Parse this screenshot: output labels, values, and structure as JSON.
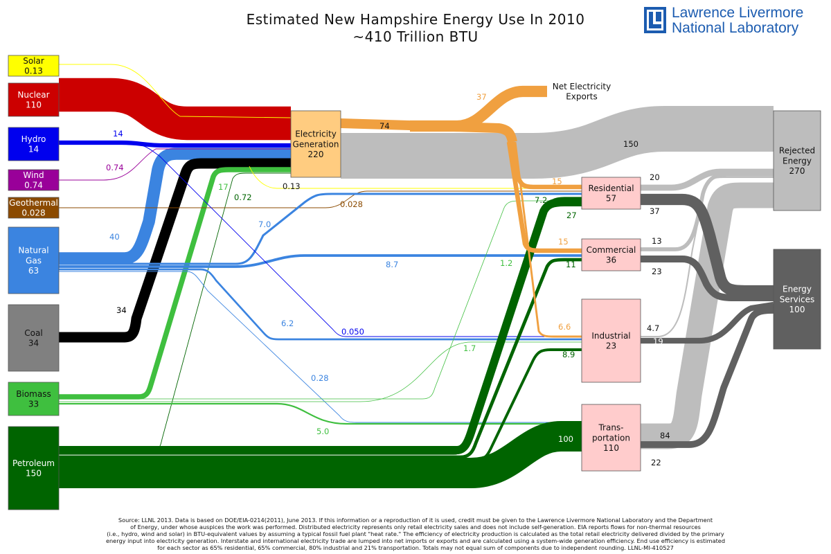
{
  "title": {
    "line1": "Estimated New Hampshire Energy Use In 2010",
    "line2": "~410 Trillion BTU"
  },
  "logo": {
    "line1": "Lawrence Livermore",
    "line2": "National Laboratory"
  },
  "colors": {
    "solar": "#ffff00",
    "nuclear": "#cc0000",
    "hydro": "#0000ee",
    "wind": "#990099",
    "geothermal": "#8b4a00",
    "natural_gas": "#3b84e0",
    "coal": "#000000",
    "biomass": "#3fbf3f",
    "petroleum": "#006400",
    "electricity": "#f0a040",
    "rejected": "#bdbdbd",
    "services": "#606060",
    "sector": "#ffcccc"
  },
  "sources": [
    {
      "id": "solar",
      "name": "Solar",
      "value": "0.13"
    },
    {
      "id": "nuclear",
      "name": "Nuclear",
      "value": "110"
    },
    {
      "id": "hydro",
      "name": "Hydro",
      "value": "14"
    },
    {
      "id": "wind",
      "name": "Wind",
      "value": "0.74"
    },
    {
      "id": "geothermal",
      "name": "Geothermal",
      "value": "0.028"
    },
    {
      "id": "natural_gas",
      "name": "Natural\nGas",
      "value": "63"
    },
    {
      "id": "coal",
      "name": "Coal",
      "value": "34"
    },
    {
      "id": "biomass",
      "name": "Biomass",
      "value": "33"
    },
    {
      "id": "petroleum",
      "name": "Petroleum",
      "value": "150"
    }
  ],
  "electricity": {
    "name": "Electricity\nGeneration",
    "value": "220"
  },
  "exports": {
    "name": "Net Electricity\nExports"
  },
  "sectors": [
    {
      "id": "residential",
      "name": "Residential",
      "value": "57"
    },
    {
      "id": "commercial",
      "name": "Commercial",
      "value": "36"
    },
    {
      "id": "industrial",
      "name": "Industrial",
      "value": "23"
    },
    {
      "id": "transportation",
      "name": "Trans-\nportation",
      "value": "110"
    }
  ],
  "sinks": [
    {
      "id": "rejected",
      "name": "Rejected\nEnergy",
      "value": "270"
    },
    {
      "id": "services",
      "name": "Energy\nServices",
      "value": "100"
    }
  ],
  "flows": [
    {
      "from": "solar",
      "to": "electricity",
      "label": "",
      "value": 0.13
    },
    {
      "from": "solar",
      "to": "residential",
      "label": "0.13",
      "value": 0.13
    },
    {
      "from": "nuclear",
      "to": "electricity",
      "label": "110",
      "value": 110
    },
    {
      "from": "hydro",
      "to": "electricity",
      "label": "14",
      "value": 14
    },
    {
      "from": "hydro",
      "to": "industrial",
      "label": "0.050",
      "value": 0.05
    },
    {
      "from": "wind",
      "to": "electricity",
      "label": "0.74",
      "value": 0.74
    },
    {
      "from": "geothermal",
      "to": "residential",
      "label": "0.028",
      "value": 0.028
    },
    {
      "from": "natural_gas",
      "to": "electricity",
      "label": "40",
      "value": 40
    },
    {
      "from": "natural_gas",
      "to": "residential",
      "label": "7.0",
      "value": 7.0
    },
    {
      "from": "natural_gas",
      "to": "commercial",
      "label": "8.7",
      "value": 8.7
    },
    {
      "from": "natural_gas",
      "to": "industrial",
      "label": "6.2",
      "value": 6.2
    },
    {
      "from": "natural_gas",
      "to": "transportation",
      "label": "0.28",
      "value": 0.28
    },
    {
      "from": "coal",
      "to": "electricity",
      "label": "34",
      "value": 34
    },
    {
      "from": "biomass",
      "to": "electricity",
      "label": "17",
      "value": 17
    },
    {
      "from": "biomass",
      "to": "residential",
      "label": "1.2",
      "value": 1.2
    },
    {
      "from": "biomass",
      "to": "industrial",
      "label": "1.7",
      "value": 1.7
    },
    {
      "from": "biomass",
      "to": "transportation",
      "label": "5.0",
      "value": 5.0
    },
    {
      "from": "petroleum",
      "to": "electricity",
      "label": "0.72",
      "value": 0.72
    },
    {
      "from": "petroleum",
      "to": "residential",
      "label": "7.2",
      "value": 7.2
    },
    {
      "from": "petroleum",
      "to": "commercial",
      "label": "27",
      "value": 27
    },
    {
      "from": "petroleum",
      "to": "industrial",
      "label": "8.9",
      "value": 8.9
    },
    {
      "from": "petroleum",
      "to": "transportation",
      "label": "100",
      "value": 100
    },
    {
      "from": "electricity",
      "to": "exports",
      "label": "37",
      "value": 37
    },
    {
      "from": "electricity",
      "to": "sectors",
      "label": "74",
      "value": 74
    },
    {
      "from": "electricity",
      "to": "rejected",
      "label": "150",
      "value": 150
    },
    {
      "from": "electricity",
      "to": "residential",
      "label": "15",
      "value": 15
    },
    {
      "from": "electricity",
      "to": "commercial",
      "label": "15",
      "value": 15
    },
    {
      "from": "electricity",
      "to": "industrial",
      "label": "6.6",
      "value": 6.6
    },
    {
      "from": "commercial",
      "to": "commercial_petroleum",
      "label": "11",
      "value": 11
    },
    {
      "from": "residential",
      "to": "rejected",
      "label": "20",
      "value": 20
    },
    {
      "from": "residential",
      "to": "services",
      "label": "37",
      "value": 37
    },
    {
      "from": "commercial",
      "to": "rejected",
      "label": "13",
      "value": 13
    },
    {
      "from": "commercial",
      "to": "services",
      "label": "23",
      "value": 23
    },
    {
      "from": "industrial",
      "to": "rejected",
      "label": "4.7",
      "value": 4.7
    },
    {
      "from": "industrial",
      "to": "services",
      "label": "19",
      "value": 19
    },
    {
      "from": "transportation",
      "to": "rejected",
      "label": "84",
      "value": 84
    },
    {
      "from": "transportation",
      "to": "services",
      "label": "22",
      "value": 22
    }
  ],
  "source_note": [
    "Source: LLNL 2013. Data is based on DOE/EIA-0214(2011), June 2013. If this information or a reproduction of it is used, credit must be given to the Lawrence Livermore National Laboratory and the Department",
    "of Energy, under whose auspices the work was performed. Distributed electricity represents only retail electricity sales and does not include self-generation.  EIA reports flows for non-thermal resources",
    "(i.e., hydro, wind and solar) in BTU-equivalent values by assuming a typical fossil fuel plant \"heat rate.\"  The efficiency of electricity production is calculated as the total retail electricity delivered divided by the primary",
    "energy input into electricity generation.  Interstate and international electricity trade are lumped into net imports or exports and are calculated using a system-wide generation efficiency.  End use efficiency is estimated",
    "for each sector as 65% residential, 65% commercial, 80% industrial and 21% transportation. Totals may not equal sum of components due to independent rounding. LLNL-MI-410527"
  ]
}
